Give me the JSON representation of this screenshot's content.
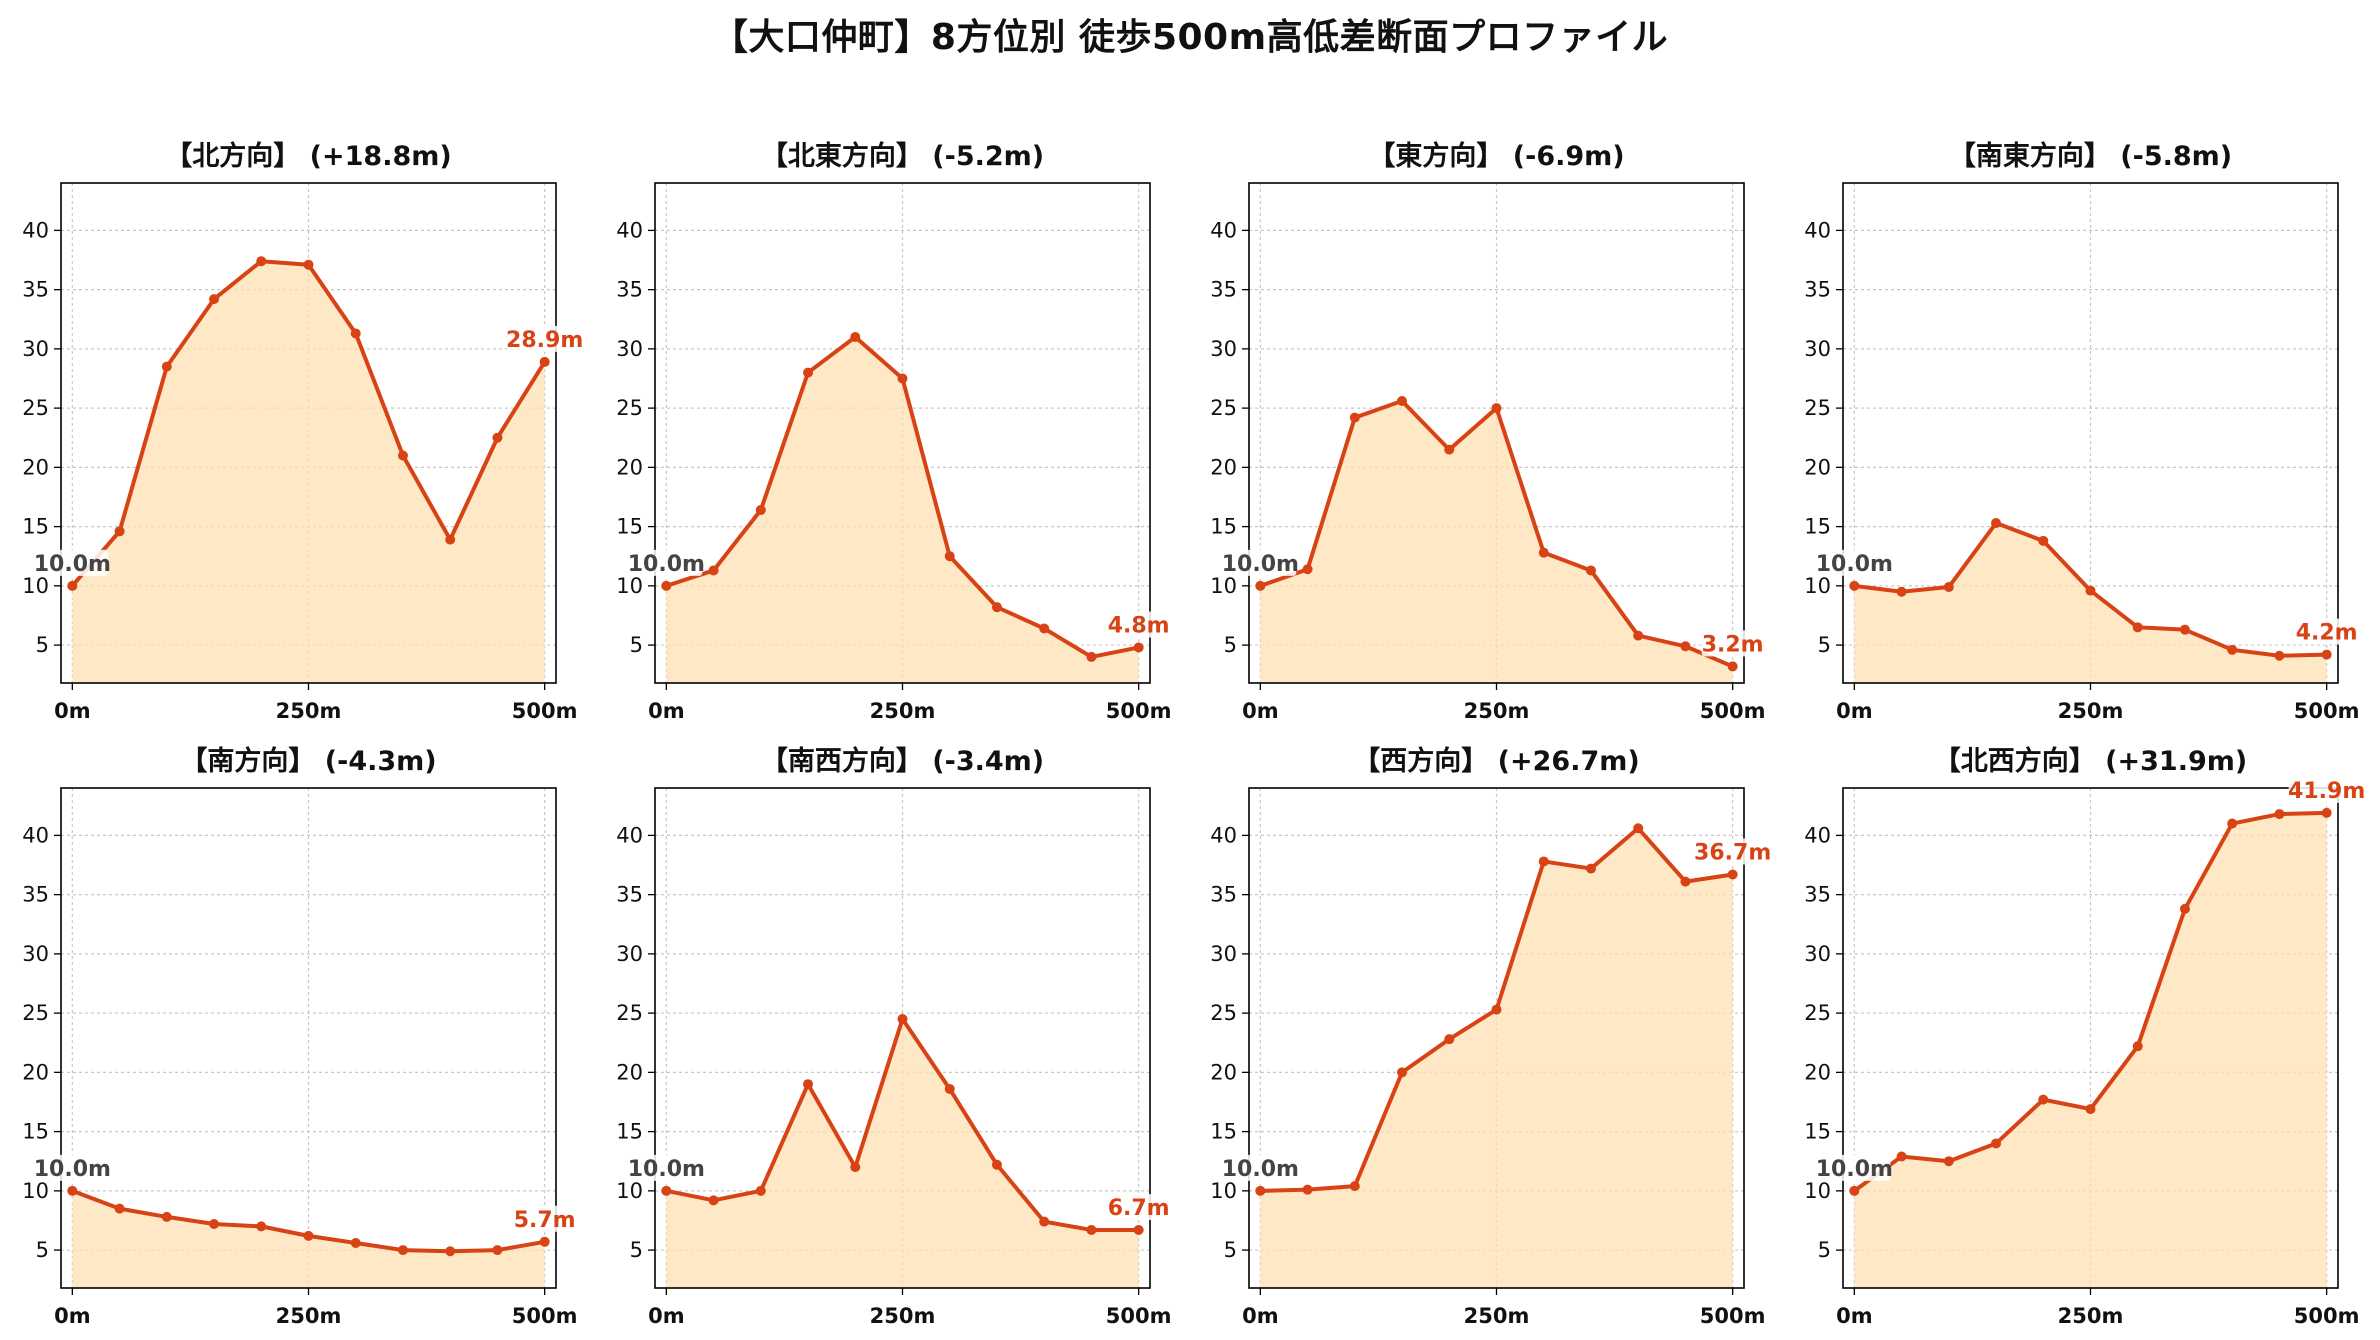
{
  "suptitle": "【大口仲町】8方位別 徒歩500m高低差断面プロファイル",
  "colors": {
    "line": "#d84315",
    "fill": "#ffe0b2",
    "grid": "#c8c8c8",
    "start_label": "#444444",
    "end_label": "#d84315"
  },
  "chart_data": [
    {
      "type": "area",
      "title": "【北方向】 (+18.8m)",
      "x": [
        0,
        50,
        100,
        150,
        200,
        250,
        300,
        350,
        400,
        450,
        500
      ],
      "y": [
        10.0,
        14.6,
        28.5,
        34.2,
        37.4,
        37.1,
        31.3,
        21.0,
        13.9,
        22.5,
        28.9
      ],
      "start_label": "10.0m",
      "end_label": "28.9m",
      "xticks": [
        "0m",
        "250m",
        "500m"
      ],
      "yticks": [
        5,
        10,
        15,
        20,
        25,
        30,
        35,
        40
      ],
      "ylim": [
        1.8,
        44
      ],
      "xlim": [
        -12,
        512
      ],
      "grid": true
    },
    {
      "type": "area",
      "title": "【北東方向】 (-5.2m)",
      "x": [
        0,
        50,
        100,
        150,
        200,
        250,
        300,
        350,
        400,
        450,
        500
      ],
      "y": [
        10.0,
        11.3,
        16.4,
        28.0,
        31.0,
        27.5,
        12.5,
        8.2,
        6.4,
        4.0,
        4.8
      ],
      "start_label": "10.0m",
      "end_label": "4.8m",
      "xticks": [
        "0m",
        "250m",
        "500m"
      ],
      "yticks": [
        5,
        10,
        15,
        20,
        25,
        30,
        35,
        40
      ],
      "ylim": [
        1.8,
        44
      ],
      "xlim": [
        -12,
        512
      ],
      "grid": true
    },
    {
      "type": "area",
      "title": "【東方向】 (-6.9m)",
      "x": [
        0,
        50,
        100,
        150,
        200,
        250,
        300,
        350,
        400,
        450,
        500
      ],
      "y": [
        10.0,
        11.4,
        24.2,
        25.6,
        21.5,
        25.0,
        12.8,
        11.3,
        5.8,
        4.9,
        3.2
      ],
      "start_label": "10.0m",
      "end_label": "3.2m",
      "xticks": [
        "0m",
        "250m",
        "500m"
      ],
      "yticks": [
        5,
        10,
        15,
        20,
        25,
        30,
        35,
        40
      ],
      "ylim": [
        1.8,
        44
      ],
      "xlim": [
        -12,
        512
      ],
      "grid": true
    },
    {
      "type": "area",
      "title": "【南東方向】 (-5.8m)",
      "x": [
        0,
        50,
        100,
        150,
        200,
        250,
        300,
        350,
        400,
        450,
        500
      ],
      "y": [
        10.0,
        9.5,
        9.9,
        15.3,
        13.8,
        9.6,
        6.5,
        6.3,
        4.6,
        4.1,
        4.2
      ],
      "start_label": "10.0m",
      "end_label": "4.2m",
      "xticks": [
        "0m",
        "250m",
        "500m"
      ],
      "yticks": [
        5,
        10,
        15,
        20,
        25,
        30,
        35,
        40
      ],
      "ylim": [
        1.8,
        44
      ],
      "xlim": [
        -12,
        512
      ],
      "grid": true
    },
    {
      "type": "area",
      "title": "【南方向】 (-4.3m)",
      "x": [
        0,
        50,
        100,
        150,
        200,
        250,
        300,
        350,
        400,
        450,
        500
      ],
      "y": [
        10.0,
        8.5,
        7.8,
        7.2,
        7.0,
        6.2,
        5.6,
        5.0,
        4.9,
        5.0,
        5.7
      ],
      "start_label": "10.0m",
      "end_label": "5.7m",
      "xticks": [
        "0m",
        "250m",
        "500m"
      ],
      "yticks": [
        5,
        10,
        15,
        20,
        25,
        30,
        35,
        40
      ],
      "ylim": [
        1.8,
        44
      ],
      "xlim": [
        -12,
        512
      ],
      "grid": true
    },
    {
      "type": "area",
      "title": "【南西方向】 (-3.4m)",
      "x": [
        0,
        50,
        100,
        150,
        200,
        250,
        300,
        350,
        400,
        450,
        500
      ],
      "y": [
        10.0,
        9.2,
        10.0,
        19.0,
        12.0,
        24.5,
        18.6,
        12.2,
        7.4,
        6.7,
        6.7
      ],
      "start_label": "10.0m",
      "end_label": "6.7m",
      "xticks": [
        "0m",
        "250m",
        "500m"
      ],
      "yticks": [
        5,
        10,
        15,
        20,
        25,
        30,
        35,
        40
      ],
      "ylim": [
        1.8,
        44
      ],
      "xlim": [
        -12,
        512
      ],
      "grid": true
    },
    {
      "type": "area",
      "title": "【西方向】 (+26.7m)",
      "x": [
        0,
        50,
        100,
        150,
        200,
        250,
        300,
        350,
        400,
        450,
        500
      ],
      "y": [
        10.0,
        10.1,
        10.4,
        20.0,
        22.8,
        25.3,
        37.8,
        37.2,
        40.6,
        36.1,
        36.7
      ],
      "start_label": "10.0m",
      "end_label": "36.7m",
      "xticks": [
        "0m",
        "250m",
        "500m"
      ],
      "yticks": [
        5,
        10,
        15,
        20,
        25,
        30,
        35,
        40
      ],
      "ylim": [
        1.8,
        44
      ],
      "xlim": [
        -12,
        512
      ],
      "grid": true
    },
    {
      "type": "area",
      "title": "【北西方向】 (+31.9m)",
      "x": [
        0,
        50,
        100,
        150,
        200,
        250,
        300,
        350,
        400,
        450,
        500
      ],
      "y": [
        10.0,
        12.9,
        12.5,
        14.0,
        17.7,
        16.9,
        22.2,
        33.8,
        41.0,
        41.8,
        41.9
      ],
      "start_label": "10.0m",
      "end_label": "41.9m",
      "xticks": [
        "0m",
        "250m",
        "500m"
      ],
      "yticks": [
        5,
        10,
        15,
        20,
        25,
        30,
        35,
        40
      ],
      "ylim": [
        1.8,
        44
      ],
      "xlim": [
        -12,
        512
      ],
      "grid": true
    }
  ]
}
